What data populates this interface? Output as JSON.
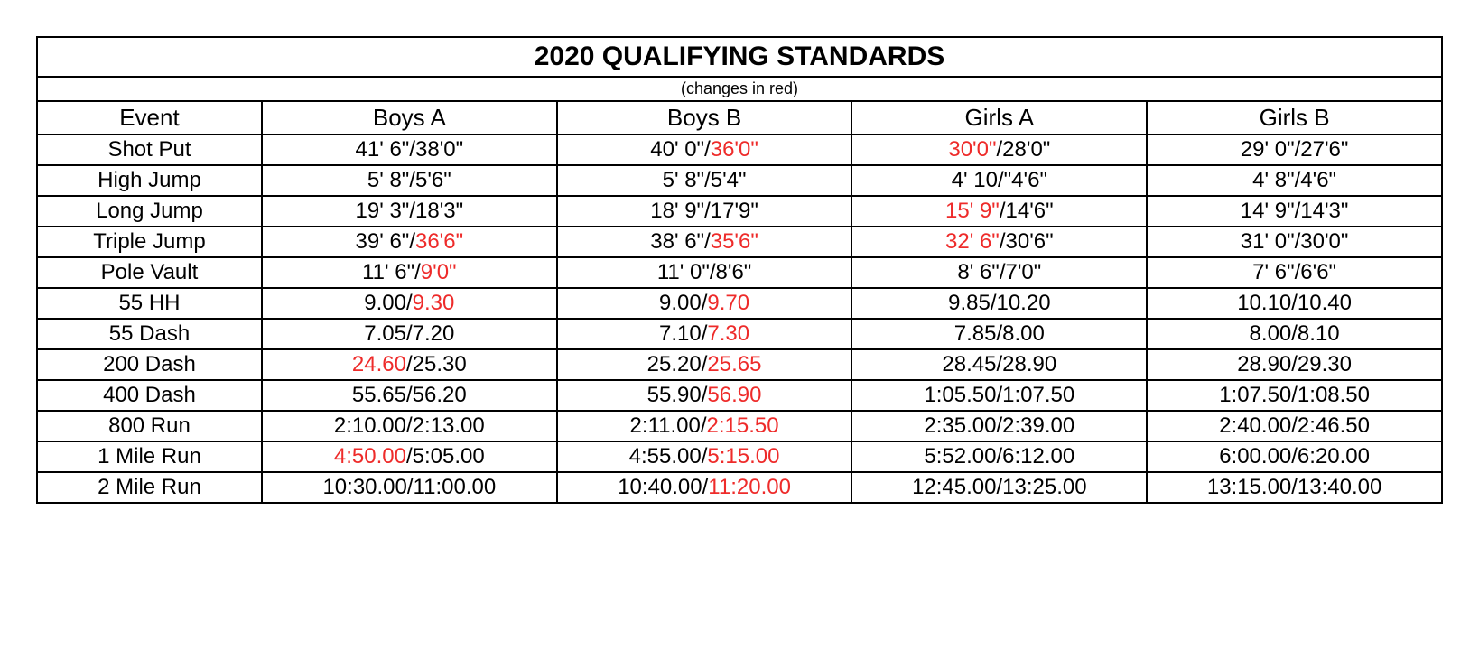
{
  "title": "2020 QUALIFYING STANDARDS",
  "subtitle": "(changes in red)",
  "columns": [
    "Event",
    "Boys A",
    "Boys B",
    "Girls A",
    "Girls B"
  ],
  "colors": {
    "text": "#000000",
    "changed": "#ee2b2a",
    "border": "#000000",
    "background": "#ffffff"
  },
  "font": {
    "family": "Arial",
    "title_size_pt": 22,
    "subtitle_size_pt": 13,
    "header_size_pt": 19,
    "body_size_pt": 18
  },
  "rows": [
    {
      "event": "Shot Put",
      "boys_a": [
        {
          "t": "41' 6\"/38'0\"",
          "c": false
        }
      ],
      "boys_b": [
        {
          "t": "40' 0\"/",
          "c": false
        },
        {
          "t": "36'0\"",
          "c": true
        }
      ],
      "girls_a": [
        {
          "t": "30'0\"",
          "c": true
        },
        {
          "t": "/28'0\"",
          "c": false
        }
      ],
      "girls_b": [
        {
          "t": "29' 0\"/27'6\"",
          "c": false
        }
      ]
    },
    {
      "event": "High Jump",
      "boys_a": [
        {
          "t": "5' 8\"/5'6\"",
          "c": false
        }
      ],
      "boys_b": [
        {
          "t": "5' 8\"/5'4\"",
          "c": false
        }
      ],
      "girls_a": [
        {
          "t": "4' 10/\"4'6\"",
          "c": false
        }
      ],
      "girls_b": [
        {
          "t": "4' 8\"/4'6\"",
          "c": false
        }
      ]
    },
    {
      "event": "Long Jump",
      "boys_a": [
        {
          "t": "19' 3\"/18'3\"",
          "c": false
        }
      ],
      "boys_b": [
        {
          "t": "18' 9\"/17'9\"",
          "c": false
        }
      ],
      "girls_a": [
        {
          "t": "15' 9\"",
          "c": true
        },
        {
          "t": "/14'6\"",
          "c": false
        }
      ],
      "girls_b": [
        {
          "t": "14' 9\"/14'3\"",
          "c": false
        }
      ]
    },
    {
      "event": "Triple Jump",
      "boys_a": [
        {
          "t": "39' 6\"/",
          "c": false
        },
        {
          "t": "36'6\"",
          "c": true
        }
      ],
      "boys_b": [
        {
          "t": "38' 6\"/",
          "c": false
        },
        {
          "t": "35'6\"",
          "c": true
        }
      ],
      "girls_a": [
        {
          "t": "32' 6\"",
          "c": true
        },
        {
          "t": "/30'6\"",
          "c": false
        }
      ],
      "girls_b": [
        {
          "t": "31' 0\"/30'0\"",
          "c": false
        }
      ]
    },
    {
      "event": "Pole Vault",
      "boys_a": [
        {
          "t": "11' 6\"/",
          "c": false
        },
        {
          "t": "9'0\"",
          "c": true
        }
      ],
      "boys_b": [
        {
          "t": "11' 0\"/8'6\"",
          "c": false
        }
      ],
      "girls_a": [
        {
          "t": "8' 6\"/7'0\"",
          "c": false
        }
      ],
      "girls_b": [
        {
          "t": "7' 6\"/6'6\"",
          "c": false
        }
      ]
    },
    {
      "event": "55 HH",
      "boys_a": [
        {
          "t": "9.00/",
          "c": false
        },
        {
          "t": "9.30",
          "c": true
        }
      ],
      "boys_b": [
        {
          "t": "9.00/",
          "c": false
        },
        {
          "t": "9.70",
          "c": true
        }
      ],
      "girls_a": [
        {
          "t": "9.85/10.20",
          "c": false
        }
      ],
      "girls_b": [
        {
          "t": "10.10/10.40",
          "c": false
        }
      ]
    },
    {
      "event": "55 Dash",
      "boys_a": [
        {
          "t": "7.05/7.20",
          "c": false
        }
      ],
      "boys_b": [
        {
          "t": "7.10/",
          "c": false
        },
        {
          "t": "7.30",
          "c": true
        }
      ],
      "girls_a": [
        {
          "t": "7.85/8.00",
          "c": false
        }
      ],
      "girls_b": [
        {
          "t": "8.00/8.10",
          "c": false
        }
      ]
    },
    {
      "event": "200 Dash",
      "boys_a": [
        {
          "t": "24.60",
          "c": true
        },
        {
          "t": "/25.30",
          "c": false
        }
      ],
      "boys_b": [
        {
          "t": "25.20/",
          "c": false
        },
        {
          "t": "25.65",
          "c": true
        }
      ],
      "girls_a": [
        {
          "t": "28.45/28.90",
          "c": false
        }
      ],
      "girls_b": [
        {
          "t": "28.90/29.30",
          "c": false
        }
      ]
    },
    {
      "event": "400 Dash",
      "boys_a": [
        {
          "t": "55.65/56.20",
          "c": false
        }
      ],
      "boys_b": [
        {
          "t": "55.90/",
          "c": false
        },
        {
          "t": "56.90",
          "c": true
        }
      ],
      "girls_a": [
        {
          "t": "1:05.50/1:07.50",
          "c": false
        }
      ],
      "girls_b": [
        {
          "t": "1:07.50/1:08.50",
          "c": false
        }
      ]
    },
    {
      "event": "800 Run",
      "boys_a": [
        {
          "t": "2:10.00/2:13.00",
          "c": false
        }
      ],
      "boys_b": [
        {
          "t": "2:11.00/",
          "c": false
        },
        {
          "t": "2:15.50",
          "c": true
        }
      ],
      "girls_a": [
        {
          "t": "2:35.00/2:39.00",
          "c": false
        }
      ],
      "girls_b": [
        {
          "t": "2:40.00/2:46.50",
          "c": false
        }
      ]
    },
    {
      "event": "1 Mile Run",
      "boys_a": [
        {
          "t": "4:50.00",
          "c": true
        },
        {
          "t": "/5:05.00",
          "c": false
        }
      ],
      "boys_b": [
        {
          "t": "4:55.00/",
          "c": false
        },
        {
          "t": "5:15.00",
          "c": true
        }
      ],
      "girls_a": [
        {
          "t": "5:52.00/6:12.00",
          "c": false
        }
      ],
      "girls_b": [
        {
          "t": "6:00.00/6:20.00",
          "c": false
        }
      ]
    },
    {
      "event": "2 Mile Run",
      "boys_a": [
        {
          "t": "10:30.00/11:00.00",
          "c": false
        }
      ],
      "boys_b": [
        {
          "t": "10:40.00/",
          "c": false
        },
        {
          "t": "11:20.00",
          "c": true
        }
      ],
      "girls_a": [
        {
          "t": "12:45.00/13:25.00",
          "c": false
        }
      ],
      "girls_b": [
        {
          "t": "13:15.00/13:40.00",
          "c": false
        }
      ]
    }
  ]
}
